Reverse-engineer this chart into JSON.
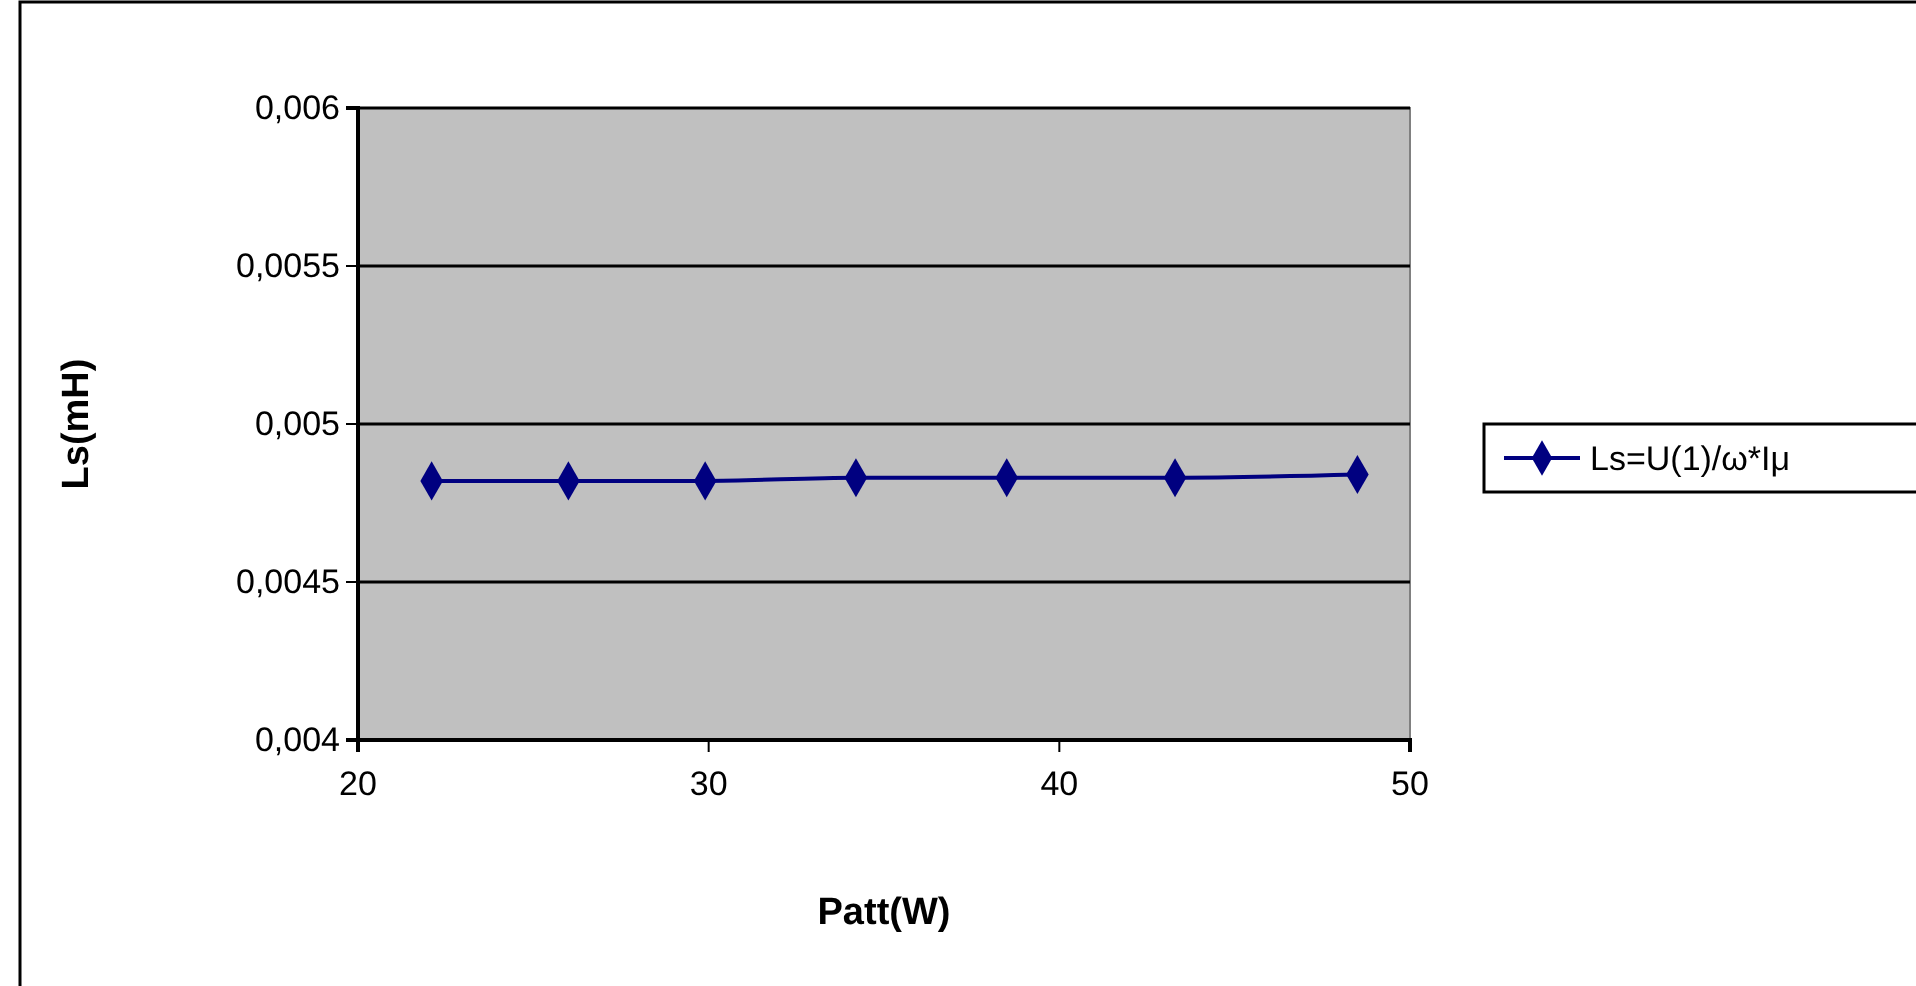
{
  "chart_data": {
    "type": "line",
    "xlabel": "Patt(W)",
    "ylabel": "Ls(mH)",
    "x": [
      22.1,
      26.0,
      29.9,
      34.2,
      38.5,
      43.3,
      48.5
    ],
    "series": [
      {
        "name": "Ls=U(1)/ω*Iμ",
        "color": "#000080",
        "values": [
          0.00482,
          0.00482,
          0.00482,
          0.00483,
          0.00483,
          0.00483,
          0.00484
        ]
      }
    ],
    "xlim": [
      20,
      50
    ],
    "xticks": [
      20,
      30,
      40,
      50
    ],
    "ylim": [
      0.004,
      0.006
    ],
    "yticks": [
      {
        "value": 0.004,
        "label": "0,004"
      },
      {
        "value": 0.0045,
        "label": "0,0045"
      },
      {
        "value": 0.005,
        "label": "0,005"
      },
      {
        "value": 0.0055,
        "label": "0,0055"
      },
      {
        "value": 0.006,
        "label": "0,006"
      }
    ],
    "grid": "y",
    "legend": "right",
    "marker": "diamond",
    "line_style": "solid"
  }
}
